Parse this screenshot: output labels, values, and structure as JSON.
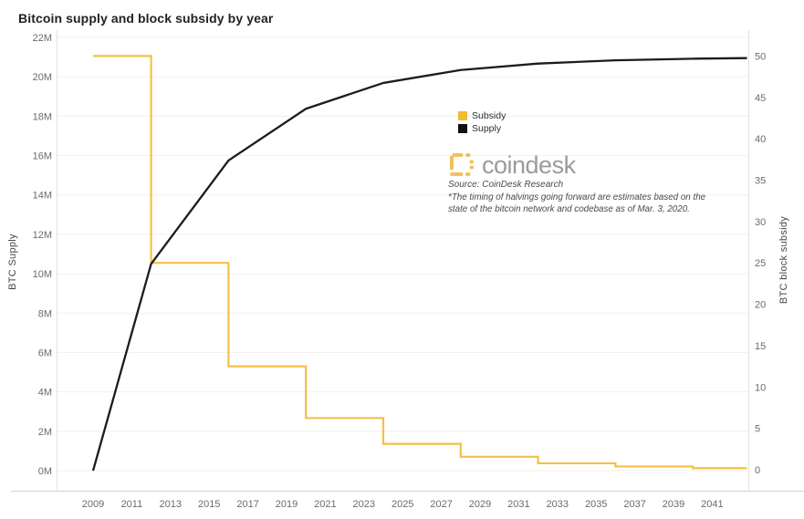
{
  "title": "Bitcoin supply and block subsidy by year",
  "legend": {
    "items": [
      {
        "label": "Subsidy",
        "color": "#F2BB31"
      },
      {
        "label": "Supply",
        "color": "#111111"
      }
    ]
  },
  "branding": {
    "logo_text": "coindesk",
    "logo_color": "#EFC25C",
    "source": "Source: CoinDesk Research",
    "note_line1": "*The timing of halvings going forward are estimates based on the",
    "note_line2": "state of the bitcoin network and codebase as of Mar. 3, 2020."
  },
  "axes": {
    "left_title": "BTC Supply",
    "right_title": "BTC block subsidy",
    "left_ticks": [
      {
        "v": 22,
        "label": "22M"
      },
      {
        "v": 20,
        "label": "20M"
      },
      {
        "v": 18,
        "label": "18M"
      },
      {
        "v": 16,
        "label": "16M"
      },
      {
        "v": 14,
        "label": "14M"
      },
      {
        "v": 12,
        "label": "12M"
      },
      {
        "v": 10,
        "label": "10M"
      },
      {
        "v": 8,
        "label": "8M"
      },
      {
        "v": 6,
        "label": "6M"
      },
      {
        "v": 4,
        "label": "4M"
      },
      {
        "v": 2,
        "label": "2M"
      },
      {
        "v": 0,
        "label": "0M"
      }
    ],
    "right_ticks": [
      {
        "v": 50,
        "label": "50"
      },
      {
        "v": 45,
        "label": "45"
      },
      {
        "v": 40,
        "label": "40"
      },
      {
        "v": 35,
        "label": "35"
      },
      {
        "v": 30,
        "label": "30"
      },
      {
        "v": 25,
        "label": "25"
      },
      {
        "v": 20,
        "label": "20"
      },
      {
        "v": 15,
        "label": "15"
      },
      {
        "v": 10,
        "label": "10"
      },
      {
        "v": 5,
        "label": "5"
      },
      {
        "v": 0,
        "label": "0"
      }
    ],
    "x_ticks": [
      {
        "v": 2009,
        "label": "2009"
      },
      {
        "v": 2011,
        "label": "2011"
      },
      {
        "v": 2013,
        "label": "2013"
      },
      {
        "v": 2015,
        "label": "2015"
      },
      {
        "v": 2017,
        "label": "2017"
      },
      {
        "v": 2019,
        "label": "2019"
      },
      {
        "v": 2021,
        "label": "2021"
      },
      {
        "v": 2023,
        "label": "2023"
      },
      {
        "v": 2025,
        "label": "2025"
      },
      {
        "v": 2027,
        "label": "2027"
      },
      {
        "v": 2029,
        "label": "2029"
      },
      {
        "v": 2031,
        "label": "2031"
      },
      {
        "v": 2033,
        "label": "2033"
      },
      {
        "v": 2035,
        "label": "2035"
      },
      {
        "v": 2037,
        "label": "2037"
      },
      {
        "v": 2039,
        "label": "2039"
      },
      {
        "v": 2041,
        "label": "2041"
      }
    ]
  },
  "chart_data": {
    "type": "line",
    "title": "Bitcoin supply and block subsidy by year",
    "x_range": [
      2007.1,
      2042.9
    ],
    "left_axis": {
      "label": "BTC Supply",
      "min": 0,
      "max": 22,
      "unit": "M BTC",
      "grid": true
    },
    "right_axis": {
      "label": "BTC block subsidy",
      "min": 0,
      "max": 50,
      "grid": false
    },
    "legend_position": "center",
    "series": [
      {
        "name": "Subsidy",
        "axis": "right",
        "style": "step",
        "color": "#F4C044",
        "segments_year_from_to_value": [
          [
            2009,
            2012,
            50
          ],
          [
            2012,
            2016,
            25
          ],
          [
            2016,
            2020,
            12.5
          ],
          [
            2020,
            2024,
            6.25
          ],
          [
            2024,
            2028,
            3.125
          ],
          [
            2028,
            2032,
            1.5625
          ],
          [
            2032,
            2036,
            0.78125
          ],
          [
            2036,
            2040,
            0.390625
          ],
          [
            2040,
            2042.8,
            0.1953125
          ]
        ]
      },
      {
        "name": "Supply",
        "axis": "left",
        "style": "line",
        "color": "#1c1c1c",
        "points_year_millionBTC": [
          [
            2009,
            0
          ],
          [
            2012,
            10.5
          ],
          [
            2016,
            15.75
          ],
          [
            2020,
            18.375
          ],
          [
            2024,
            19.6875
          ],
          [
            2028,
            20.344
          ],
          [
            2032,
            20.672
          ],
          [
            2036,
            20.836
          ],
          [
            2040,
            20.918
          ],
          [
            2042.8,
            20.949
          ]
        ]
      }
    ]
  }
}
